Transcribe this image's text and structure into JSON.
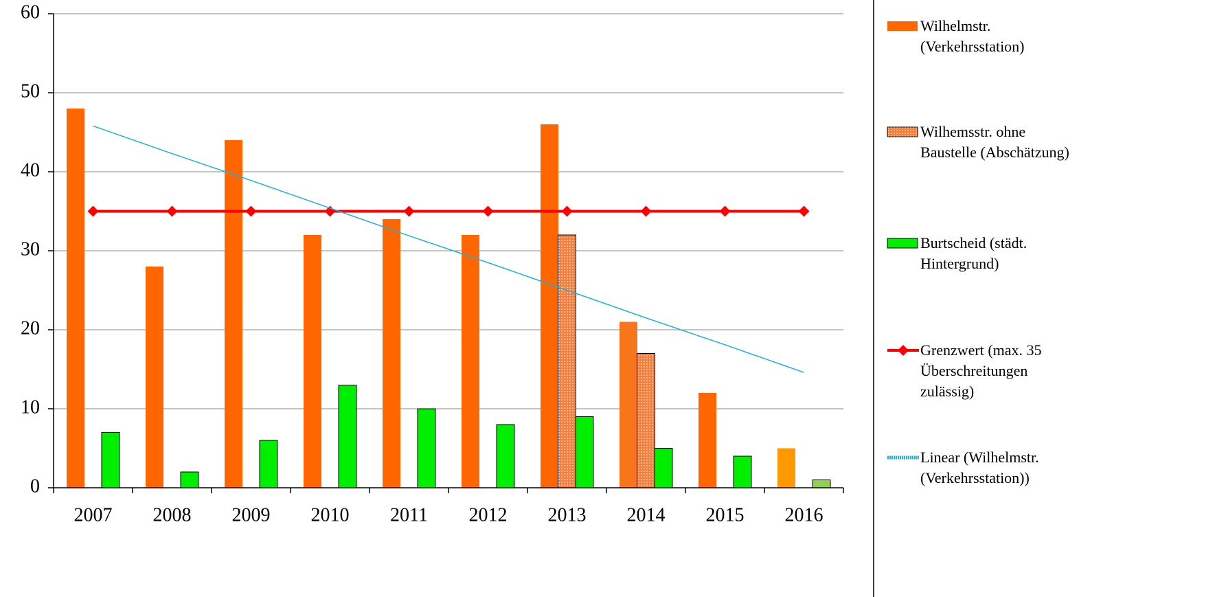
{
  "chart_data": {
    "type": "bar",
    "categories": [
      "2007",
      "2008",
      "2009",
      "2010",
      "2011",
      "2012",
      "2013",
      "2014",
      "2015",
      "2016"
    ],
    "series": [
      {
        "name": "Wilhelmstr. (Verkehrsstation)",
        "type": "bar",
        "color": "#ff6600",
        "colors": [
          "#ff6600",
          "#ff6600",
          "#ff6600",
          "#ff6600",
          "#ff6600",
          "#ff6600",
          "#ff6600",
          "#f7761c",
          "#ff6600",
          "#ff9900"
        ],
        "values": [
          48,
          28,
          44,
          32,
          34,
          32,
          46,
          21,
          12,
          5
        ]
      },
      {
        "name": "Wilhemsstr. ohne Baustelle (Abschätzung)",
        "type": "bar",
        "color": "#ff7b33",
        "fill_pattern": "dotted",
        "outline": "#000000",
        "values": [
          null,
          null,
          null,
          null,
          null,
          null,
          32,
          17,
          null,
          null
        ]
      },
      {
        "name": "Burtscheid (städt. Hintergrund)",
        "type": "bar",
        "color": "#00ee00",
        "outline": "#000000",
        "colors": [
          "#00ee00",
          "#00ee00",
          "#00ee00",
          "#00ee00",
          "#00ee00",
          "#00ee00",
          "#00ee00",
          "#00ee00",
          "#00ee00",
          "#92d050"
        ],
        "values": [
          7,
          2,
          6,
          13,
          10,
          8,
          9,
          5,
          4,
          1
        ]
      },
      {
        "name": "Grenzwert (max. 35 Überschreitungen zulässig)",
        "type": "line",
        "color": "#ff0000",
        "marker": "diamond",
        "values": [
          35,
          35,
          35,
          35,
          35,
          35,
          35,
          35,
          35,
          35
        ]
      },
      {
        "name": "Linear (Wilhelmstr. (Verkehrsstation))",
        "type": "line",
        "color": "#1ab0e8",
        "legend_style": "dotted",
        "values": [
          45.8,
          42.3,
          38.9,
          35.4,
          31.9,
          28.5,
          25.0,
          21.5,
          18.1,
          14.6
        ]
      }
    ],
    "ylim": [
      0,
      60
    ],
    "yticks": [
      0,
      10,
      20,
      30,
      40,
      50,
      60
    ],
    "grid": true,
    "legend": "right"
  }
}
